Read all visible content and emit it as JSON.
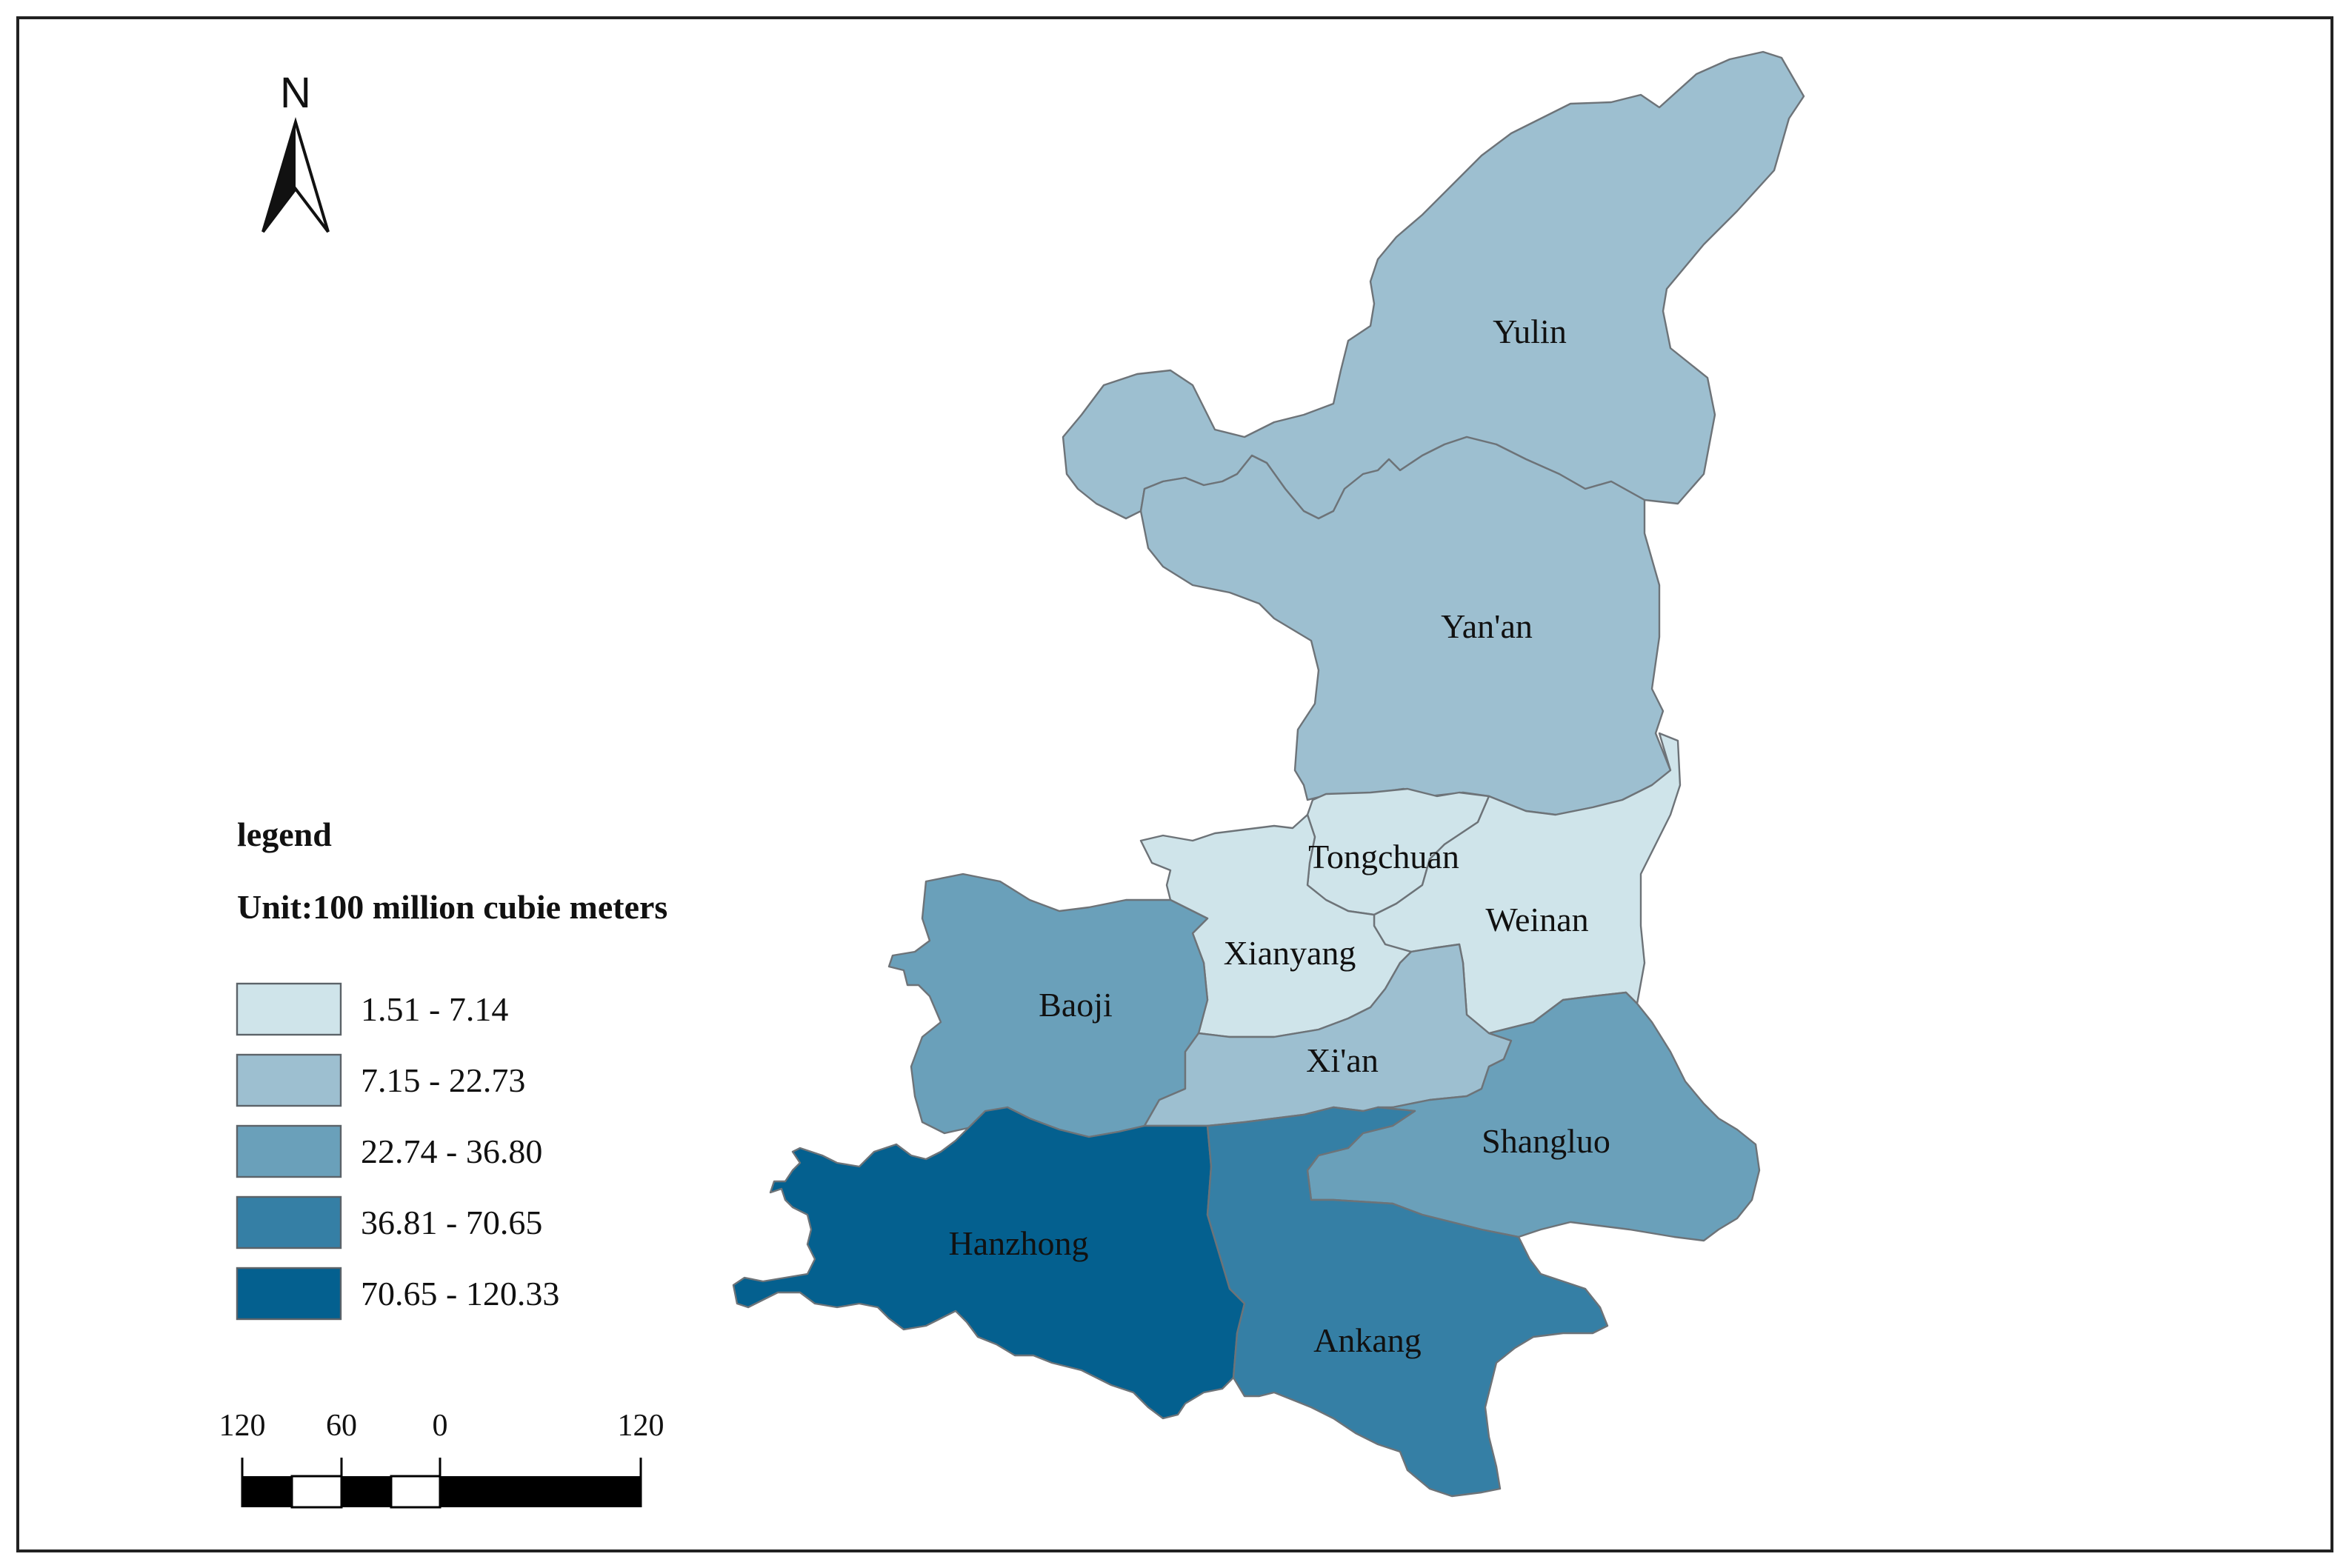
{
  "north_arrow": {
    "label": "N"
  },
  "legend": {
    "title": "legend",
    "unit": "Unit:100 million cubie meters",
    "classes": [
      {
        "label": "1.51 - 7.14",
        "color": "#cfe4ea"
      },
      {
        "label": "7.15 - 22.73",
        "color": "#9dbfd0"
      },
      {
        "label": "22.74 - 36.80",
        "color": "#6aa0ba"
      },
      {
        "label": "36.81 - 70.65",
        "color": "#357fa5"
      },
      {
        "label": "70.65 - 120.33",
        "color": "#04608f"
      }
    ]
  },
  "regions": [
    {
      "name": "Yulin",
      "class": 1
    },
    {
      "name": "Yan'an",
      "class": 1
    },
    {
      "name": "Tongchuan",
      "class": 0
    },
    {
      "name": "Weinan",
      "class": 0
    },
    {
      "name": "Xianyang",
      "class": 0
    },
    {
      "name": "Baoji",
      "class": 2
    },
    {
      "name": "Xi'an",
      "class": 1
    },
    {
      "name": "Shangluo",
      "class": 2
    },
    {
      "name": "Hanzhong",
      "class": 4
    },
    {
      "name": "Ankang",
      "class": 3
    }
  ],
  "scale_bar": {
    "labels": [
      "120",
      "60",
      "0",
      "120"
    ]
  }
}
